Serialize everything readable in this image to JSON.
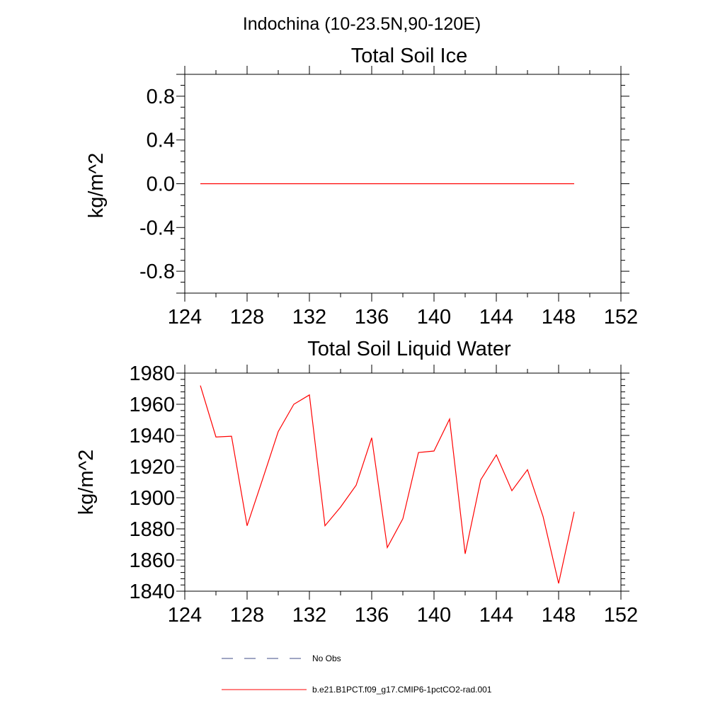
{
  "figure": {
    "main_title": "Indochina (10-23.5N,90-120E)"
  },
  "colors": {
    "model_line": "#ff0000",
    "obs_line": "#3f4d87",
    "axis": "#000000"
  },
  "legend": {
    "obs_label": "No Obs",
    "model_label": "b.e21.B1PCT.f09_g17.CMIP6-1pctCO2-rad.001"
  },
  "chart_data": [
    {
      "type": "line",
      "title": "Total Soil Ice",
      "xlabel": "",
      "ylabel": "kg/m^2",
      "xlim": [
        124,
        152
      ],
      "ylim": [
        -1.0,
        1.0
      ],
      "xticks": [
        124,
        128,
        132,
        136,
        140,
        144,
        148,
        152
      ],
      "xtick_labels": [
        "124",
        "128",
        "132",
        "136",
        "140",
        "144",
        "148",
        "152"
      ],
      "yticks": [
        -0.8,
        -0.4,
        0.0,
        0.4,
        0.8
      ],
      "ytick_labels": [
        "-0.8",
        "-0.4",
        "0.0",
        "0.4",
        "0.8"
      ],
      "x_minor_step": 2,
      "y_minor_step": 0.1,
      "grid": false,
      "series": [
        {
          "name": "b.e21.B1PCT.f09_g17.CMIP6-1pctCO2-rad.001",
          "color": "#ff0000",
          "x": [
            125,
            149
          ],
          "y": [
            0.0,
            0.0
          ]
        }
      ]
    },
    {
      "type": "line",
      "title": "Total Soil Liquid Water",
      "xlabel": "",
      "ylabel": "kg/m^2",
      "xlim": [
        124,
        152
      ],
      "ylim": [
        1840,
        1980
      ],
      "xticks": [
        124,
        128,
        132,
        136,
        140,
        144,
        148,
        152
      ],
      "xtick_labels": [
        "124",
        "128",
        "132",
        "136",
        "140",
        "144",
        "148",
        "152"
      ],
      "yticks": [
        1840,
        1860,
        1880,
        1900,
        1920,
        1940,
        1960,
        1980
      ],
      "ytick_labels": [
        "1840",
        "1860",
        "1880",
        "1900",
        "1920",
        "1940",
        "1960",
        "1980"
      ],
      "x_minor_step": 2,
      "y_minor_step": 4,
      "grid": false,
      "series": [
        {
          "name": "b.e21.B1PCT.f09_g17.CMIP6-1pctCO2-rad.001",
          "color": "#ff0000",
          "x": [
            125,
            126,
            127,
            128,
            129,
            130,
            131,
            132,
            133,
            134,
            135,
            136,
            137,
            138,
            139,
            140,
            141,
            142,
            143,
            144,
            145,
            146,
            147,
            148,
            149
          ],
          "y": [
            1972,
            1939,
            1939.5,
            1882,
            1912,
            1942.5,
            1960,
            1966,
            1882,
            1894,
            1908,
            1938.5,
            1868,
            1886.5,
            1929,
            1930,
            1950.5,
            1864,
            1911.5,
            1927.5,
            1904.5,
            1918,
            1888,
            1845,
            1891
          ]
        }
      ]
    }
  ]
}
